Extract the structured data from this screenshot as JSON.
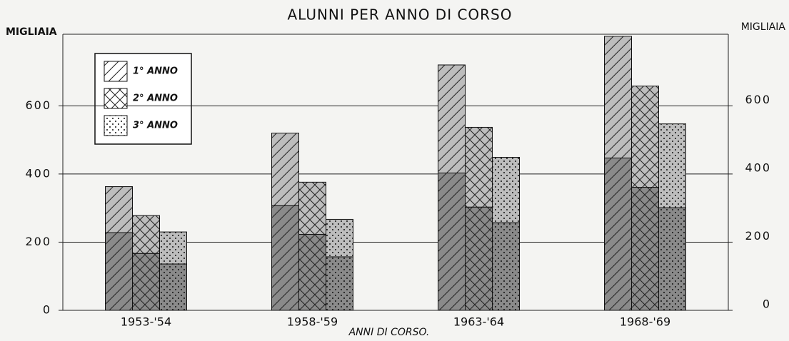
{
  "chart_data": {
    "type": "bar",
    "title": "ALUNNI PER ANNO DI CORSO",
    "y_label": "MIGLIAIA",
    "y2_label": "MIGLIAIA",
    "x_label": "ANNI DI CORSO.",
    "categories": [
      "1953-'54",
      "1958-'59",
      "1963-'64",
      "1968-'69"
    ],
    "series": [
      {
        "name": "1° ANNO",
        "pattern": "diagonal",
        "lower_values": [
          228,
          307,
          403,
          447
        ],
        "values": [
          135,
          213,
          317,
          357
        ]
      },
      {
        "name": "2° ANNO",
        "pattern": "cross",
        "lower_values": [
          167,
          223,
          303,
          361
        ],
        "values": [
          111,
          153,
          234,
          297
        ]
      },
      {
        "name": "3° ANNO",
        "pattern": "dots",
        "lower_values": [
          136,
          157,
          257,
          301
        ],
        "values": [
          94,
          110,
          192,
          246
        ]
      }
    ],
    "ylim": [
      0,
      810
    ],
    "yticks": [
      0,
      200,
      400,
      600
    ],
    "y2lim": [
      0,
      810
    ],
    "y2ticks": [
      0,
      200,
      400,
      600
    ],
    "grid": true
  }
}
